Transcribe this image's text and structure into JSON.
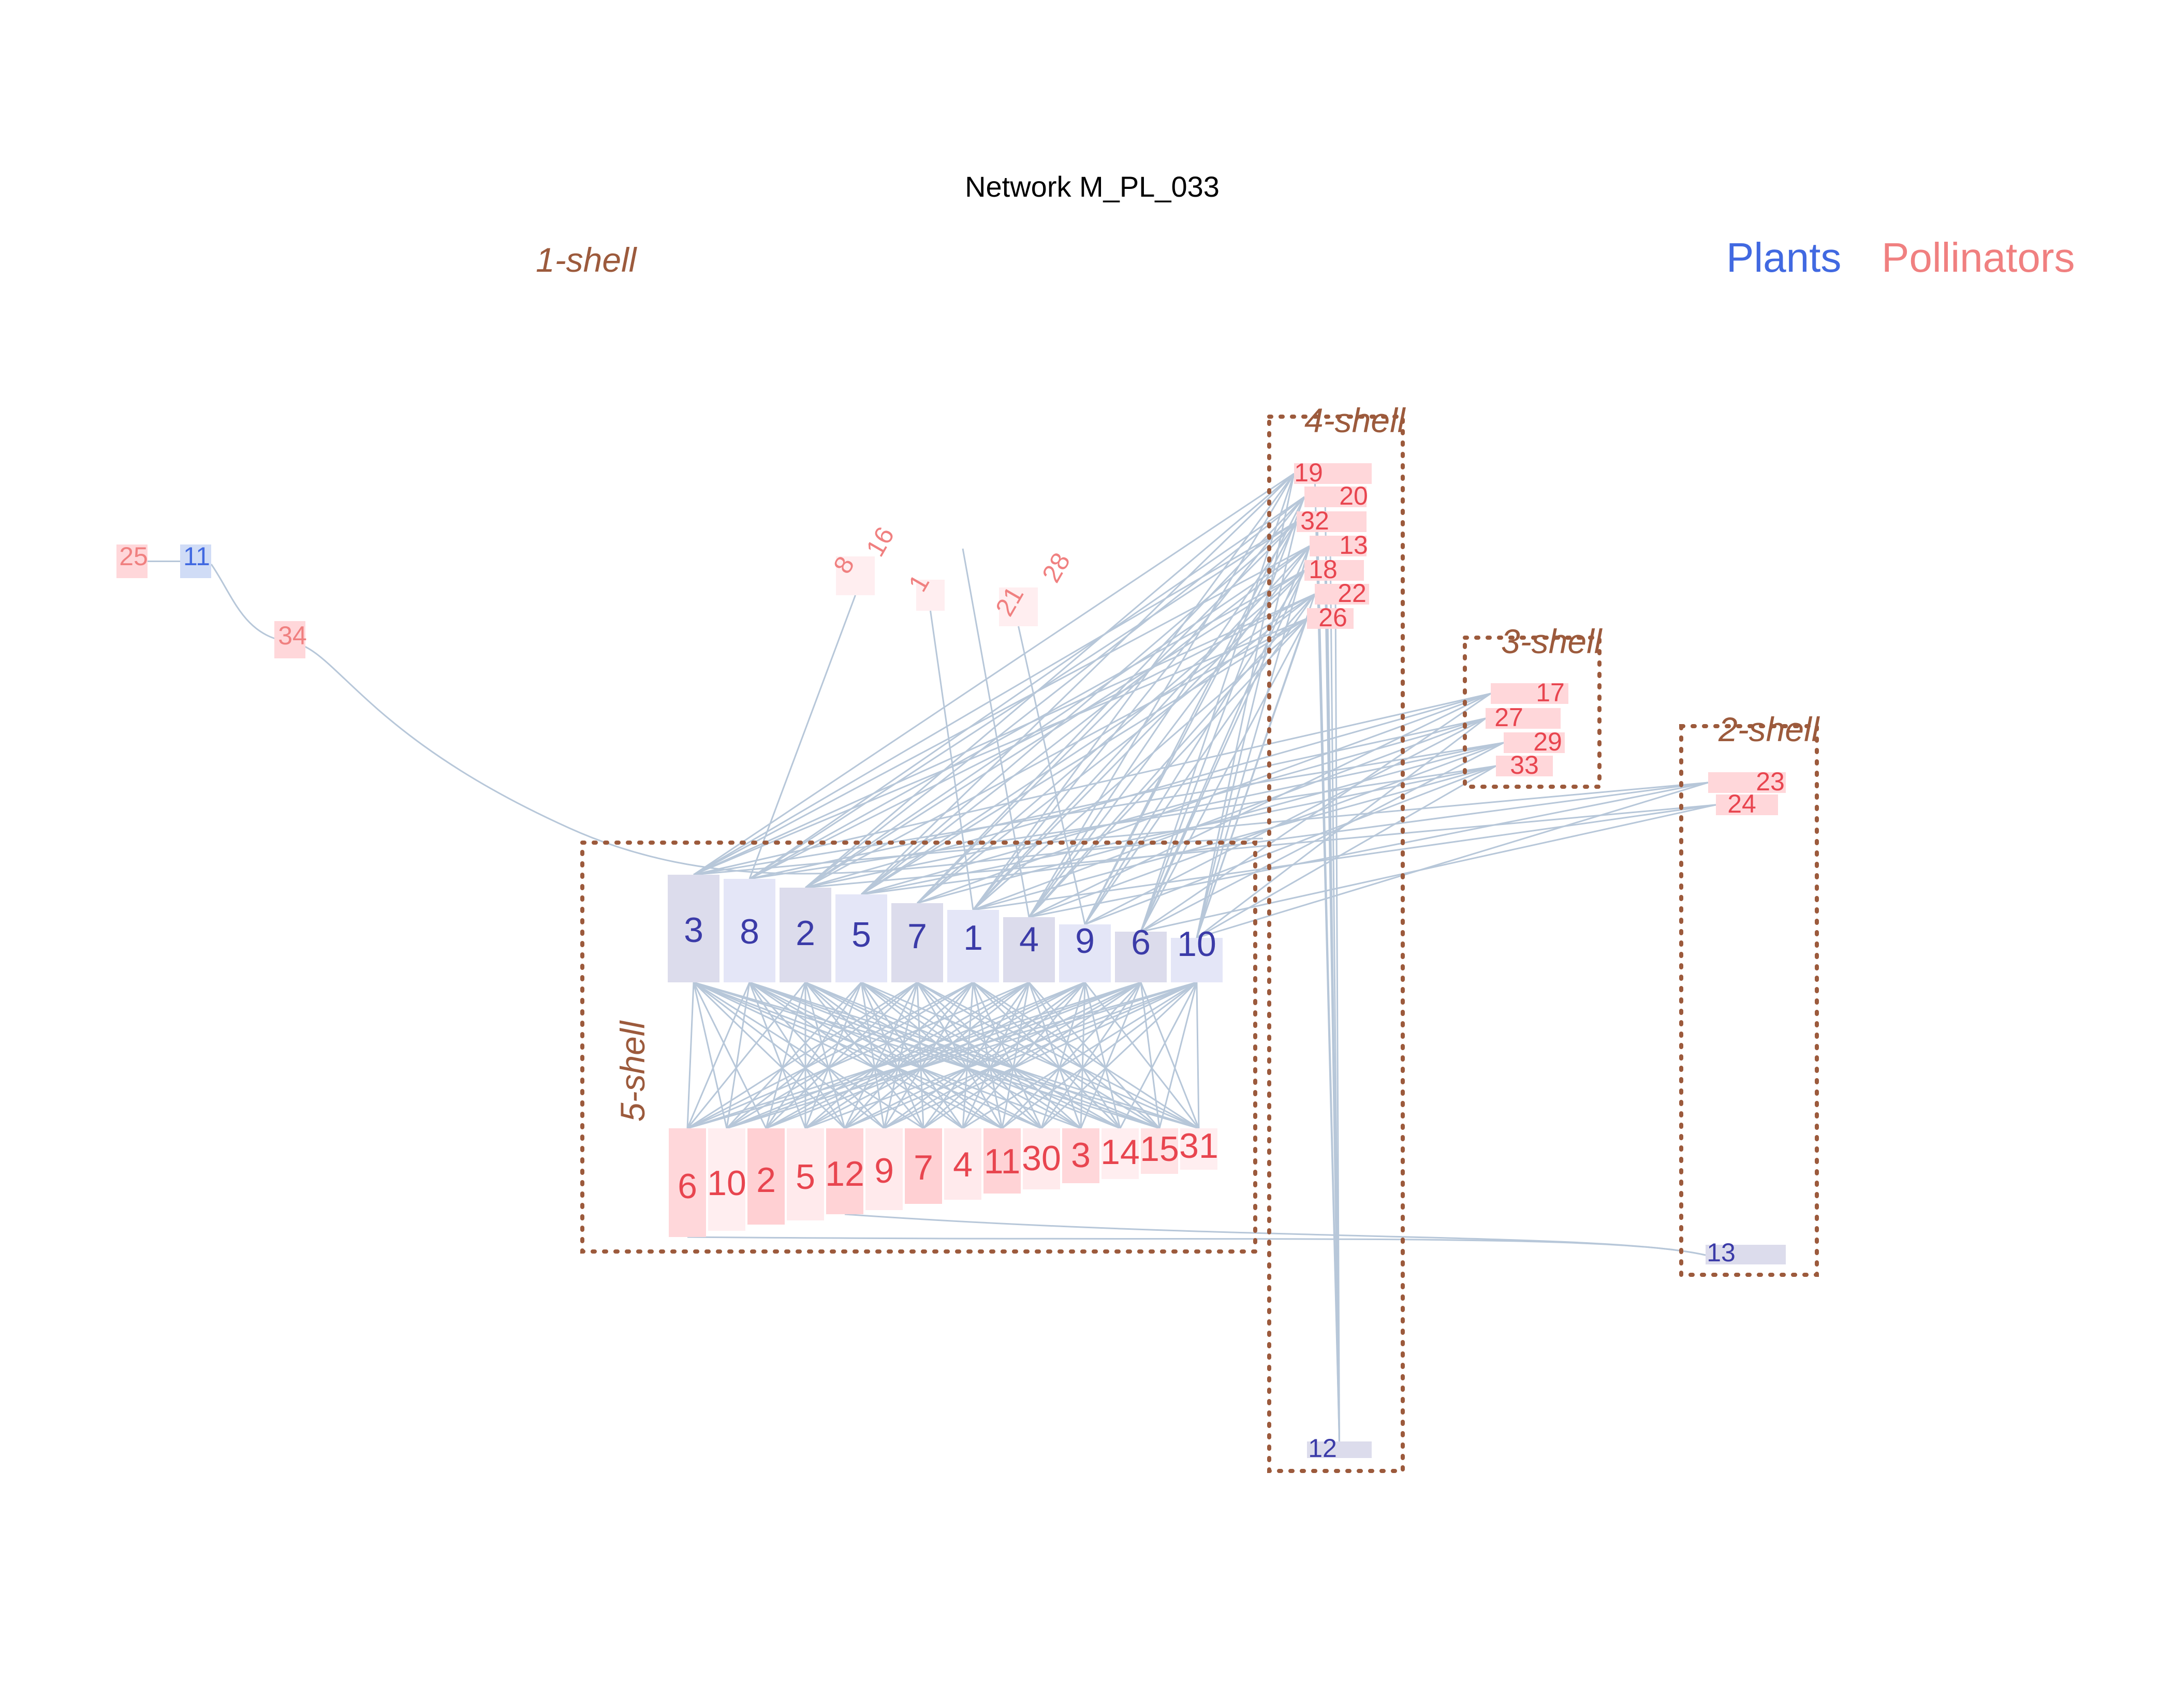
{
  "title": "Network M_PL_033",
  "legend": {
    "plants_label": "Plants",
    "pollinators_label": "Pollinators",
    "plants_color": "#4169e1",
    "pollinators_color": "#f08080"
  },
  "shells": {
    "s1": "1-shell",
    "s2": "2-shell",
    "s3": "3-shell",
    "s4": "4-shell",
    "s5": "5-shell"
  },
  "colors": {
    "edge": "#b7c7d9",
    "shell_box": "#9c5a3c",
    "plant_text": "#3b3ba8",
    "pollinator_text": "#e8454f"
  },
  "nodes": {
    "plants_core": [
      "3",
      "8",
      "2",
      "5",
      "7",
      "1",
      "4",
      "9",
      "6",
      "10"
    ],
    "pollinators_core": [
      "6",
      "10",
      "2",
      "5",
      "12",
      "9",
      "7",
      "4",
      "11",
      "30",
      "3",
      "14",
      "15",
      "31"
    ],
    "pollinators_4shell": [
      "19",
      "20",
      "32",
      "13",
      "18",
      "22",
      "26"
    ],
    "plants_4shell": [
      "12"
    ],
    "pollinators_3shell": [
      "17",
      "27",
      "29",
      "33"
    ],
    "pollinators_2shell": [
      "23",
      "24"
    ],
    "plants_2shell": [
      "13"
    ],
    "plants_1shell": [
      "11"
    ],
    "pollinators_1shell": [
      "25",
      "34",
      "8",
      "16",
      "1",
      "21",
      "28"
    ]
  }
}
